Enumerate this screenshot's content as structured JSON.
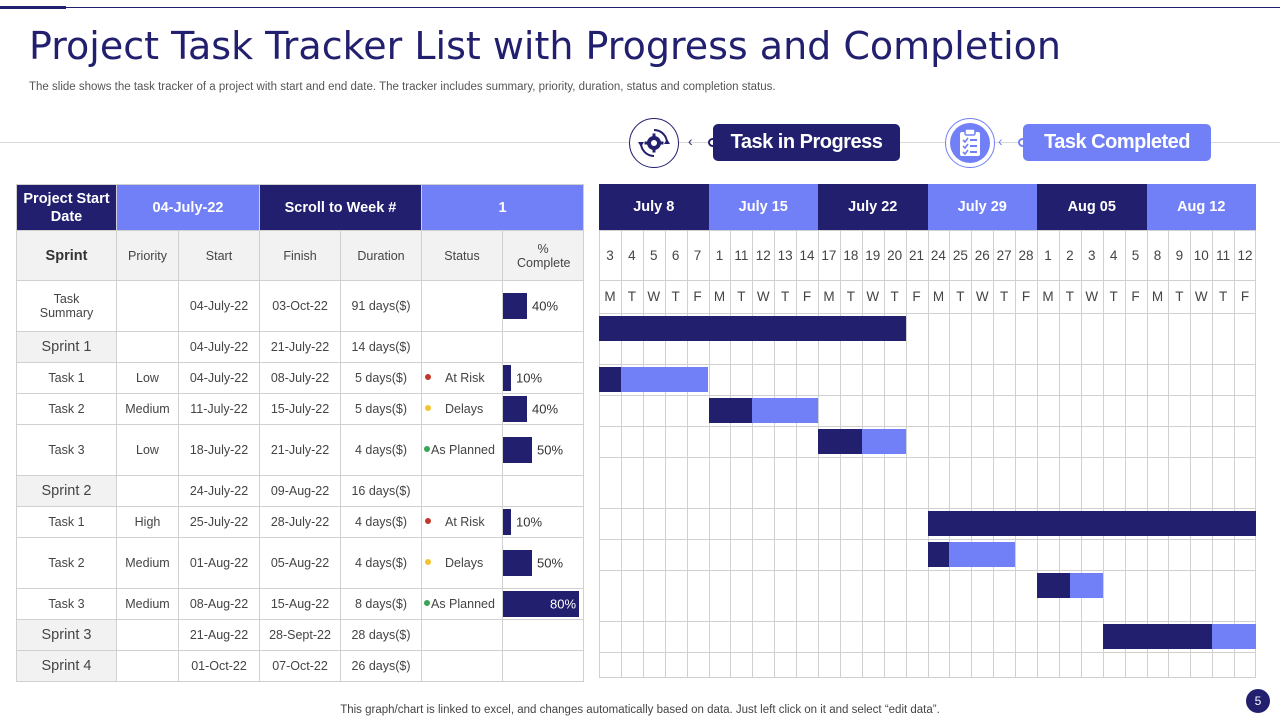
{
  "slide": {
    "title": "Project Task Tracker List with Progress and Completion",
    "subtitle": "The slide shows the task tracker of a project with start and end date. The tracker includes summary, priority, duration, status and completion status.",
    "footer": "This graph/chart is linked to excel,  and changes automatically based on data. Just left click on it and select “edit data”.",
    "page_number": "5"
  },
  "legend": {
    "in_progress": {
      "label": "Task in Progress",
      "icon": "gear-cycle-icon"
    },
    "completed": {
      "label": "Task Completed",
      "icon": "clipboard-checklist-icon"
    }
  },
  "colors": {
    "dark": "#221f6e",
    "light": "#7280f7",
    "red": "#c0392b",
    "yellow": "#f4c430",
    "green": "#3aa655"
  },
  "table": {
    "header": {
      "project_start_label": "Project Start Date",
      "project_start_value": "04-July-22",
      "scroll_label": "Scroll to Week #",
      "scroll_value": "1"
    },
    "columns": [
      "Sprint",
      "Priority",
      "Start",
      "Finish",
      "Duration",
      "Status",
      "% Complete"
    ],
    "rows": [
      {
        "name": "Task Summary",
        "kind": "summary",
        "priority": "",
        "start": "04-July-22",
        "finish": "03-Oct-22",
        "duration": "91 days($)",
        "status": "",
        "status_color": "",
        "pct": "40%",
        "pct_value": 0.4
      },
      {
        "name": "Sprint 1",
        "kind": "sprint",
        "priority": "",
        "start": "04-July-22",
        "finish": "21-July-22",
        "duration": "14 days($)",
        "status": "",
        "status_color": "",
        "pct": "",
        "pct_value": 0
      },
      {
        "name": "Task 1",
        "kind": "task",
        "priority": "Low",
        "start": "04-July-22",
        "finish": "08-July-22",
        "duration": "5 days($)",
        "status": "At Risk",
        "status_color": "#c0392b",
        "pct": "10%",
        "pct_value": 0.1
      },
      {
        "name": "Task 2",
        "kind": "task",
        "priority": "Medium",
        "start": "11-July-22",
        "finish": "15-July-22",
        "duration": "5 days($)",
        "status": "Delays",
        "status_color": "#f4c430",
        "pct": "40%",
        "pct_value": 0.4
      },
      {
        "name": "Task 3",
        "kind": "task",
        "priority": "Low",
        "start": "18-July-22",
        "finish": "21-July-22",
        "duration": "4 days($)",
        "status": "As Planned",
        "status_color": "#3aa655",
        "pct": "50%",
        "pct_value": 0.5
      },
      {
        "name": "Sprint 2",
        "kind": "sprint",
        "priority": "",
        "start": "24-July-22",
        "finish": "09-Aug-22",
        "duration": "16 days($)",
        "status": "",
        "status_color": "",
        "pct": "",
        "pct_value": 0
      },
      {
        "name": "Task 1",
        "kind": "task",
        "priority": "High",
        "start": "25-July-22",
        "finish": "28-July-22",
        "duration": "4 days($)",
        "status": "At Risk",
        "status_color": "#c0392b",
        "pct": "10%",
        "pct_value": 0.1
      },
      {
        "name": "Task 2",
        "kind": "task",
        "priority": "Medium",
        "start": "01-Aug-22",
        "finish": "05-Aug-22",
        "duration": "4 days($)",
        "status": "Delays",
        "status_color": "#f4c430",
        "pct": "50%",
        "pct_value": 0.5
      },
      {
        "name": "Task 3",
        "kind": "task",
        "priority": "Medium",
        "start": "08-Aug-22",
        "finish": "15-Aug-22",
        "duration": "8 days($)",
        "status": "As Planned",
        "status_color": "#3aa655",
        "pct": "80%",
        "pct_value": 0.8
      },
      {
        "name": "Sprint 3",
        "kind": "sprint",
        "priority": "",
        "start": "21-Aug-22",
        "finish": "28-Sept-22",
        "duration": "28 days($)",
        "status": "",
        "status_color": "",
        "pct": "",
        "pct_value": 0
      },
      {
        "name": "Sprint 4",
        "kind": "sprint",
        "priority": "",
        "start": "01-Oct-22",
        "finish": "07-Oct-22",
        "duration": "26 days($)",
        "status": "",
        "status_color": "",
        "pct": "",
        "pct_value": 0
      }
    ]
  },
  "gantt": {
    "weeks": [
      "July 8",
      "July 15",
      "July 22",
      "July 29",
      "Aug  05",
      "Aug  12"
    ],
    "days": [
      "3",
      "4",
      "5",
      "6",
      "7",
      "1",
      "11",
      "12",
      "13",
      "14",
      "17",
      "18",
      "19",
      "20",
      "21",
      "24",
      "25",
      "26",
      "27",
      "28",
      "1",
      "2",
      "3",
      "4",
      "5",
      "8",
      "9",
      "10",
      "11",
      "12"
    ],
    "weekdays": [
      "M",
      "T",
      "W",
      "T",
      "F",
      "M",
      "T",
      "W",
      "T",
      "F",
      "M",
      "T",
      "W",
      "T",
      "F",
      "M",
      "T",
      "W",
      "T",
      "F",
      "M",
      "T",
      "W",
      "T",
      "F",
      "M",
      "T",
      "W",
      "T",
      "F"
    ],
    "bars": [
      {
        "row": 0,
        "start_day": 0,
        "done_days": 14,
        "remaining_days": 0
      },
      {
        "row": 1,
        "start_day": 0,
        "done_days": 1,
        "remaining_days": 4
      },
      {
        "row": 2,
        "start_day": 5,
        "done_days": 2,
        "remaining_days": 3
      },
      {
        "row": 3,
        "start_day": 10,
        "done_days": 2,
        "remaining_days": 2
      },
      {
        "row": 5,
        "start_day": 15,
        "done_days": 15,
        "remaining_days": 0
      },
      {
        "row": 6,
        "start_day": 15,
        "done_days": 1,
        "remaining_days": 3
      },
      {
        "row": 7,
        "start_day": 20,
        "done_days": 1.5,
        "remaining_days": 1.5
      },
      {
        "row": 8,
        "start_day": 23,
        "done_days": 5,
        "remaining_days": 2
      }
    ]
  }
}
